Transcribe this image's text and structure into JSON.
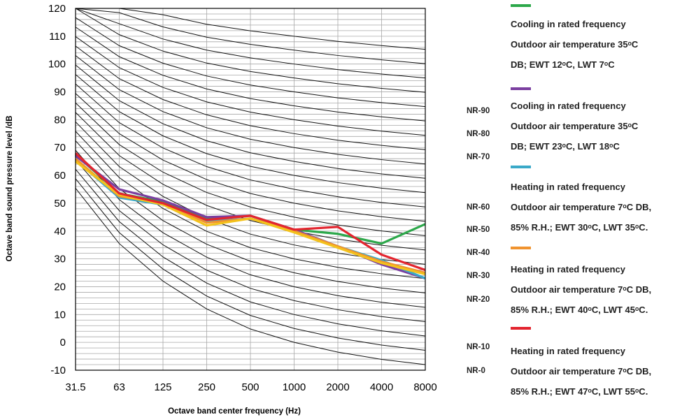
{
  "chart_data": {
    "type": "line",
    "title": "",
    "xlabel": "Octave band center frequency (Hz)",
    "ylabel": "Octave band sound pressure level /dB",
    "x_categories": [
      "31.5",
      "63",
      "125",
      "250",
      "500",
      "1000",
      "2000",
      "4000",
      "8000"
    ],
    "ylim": [
      -10,
      120
    ],
    "y_ticks": [
      -10,
      0,
      10,
      20,
      30,
      40,
      50,
      60,
      70,
      80,
      90,
      100,
      110,
      120
    ],
    "grid": true,
    "legend_position": "right",
    "nr_labels": [
      {
        "label": "NR-90",
        "value": 90
      },
      {
        "label": "NR-80",
        "value": 80
      },
      {
        "label": "NR-70",
        "value": 70
      },
      {
        "label": "NR-60",
        "value": 60
      },
      {
        "label": "NR-50",
        "value": 50
      },
      {
        "label": "NR-40",
        "value": 40
      },
      {
        "label": "NR-30",
        "value": 30
      },
      {
        "label": "NR-20",
        "value": 20
      },
      {
        "label": "NR-10",
        "value": 10
      },
      {
        "label": "NR-0",
        "value": 0
      }
    ],
    "nr_curves": {
      "levels": [
        0,
        5,
        10,
        15,
        20,
        25,
        30,
        35,
        40,
        45,
        50,
        55,
        60,
        65,
        70,
        75,
        80,
        85,
        90,
        95,
        100,
        105,
        110
      ],
      "a": [
        55.4,
        35.5,
        22.0,
        12.0,
        4.8,
        0.0,
        -3.5,
        -6.1,
        -8.0
      ],
      "b": [
        0.681,
        0.79,
        0.87,
        0.93,
        0.974,
        1.0,
        1.015,
        1.025,
        1.03
      ]
    },
    "series": [
      {
        "name": "Cooling in rated frequency Outdoor air temperature 35°C DB; EWT 12°C, LWT 7°C",
        "color": "#2ca84a",
        "values": [
          67.5,
          53.5,
          50.5,
          44.5,
          45.5,
          40.5,
          39.0,
          35.5,
          42.5
        ]
      },
      {
        "name": "Cooling in rated frequency Outdoor air temperature 35°C DB; EWT 23°C, LWT 18°C",
        "color": "#7b3fa0",
        "values": [
          67.0,
          55.0,
          51.0,
          45.0,
          45.5,
          40.5,
          34.5,
          28.0,
          23.0
        ]
      },
      {
        "name": "Heating in rated frequency Outdoor air temperature 7°C DB, 85% R.H.; EWT 30°C, LWT 35°C.",
        "color": "#3aa9c8",
        "values": [
          65.5,
          52.0,
          49.5,
          43.5,
          44.5,
          40.0,
          34.5,
          29.5,
          23.0
        ]
      },
      {
        "name": "Heating in rated frequency Outdoor air temperature 7°C DB, 85% R.H.; EWT 40°C, LWT 45°C.",
        "color": "#f0932f",
        "values": [
          66.0,
          52.5,
          50.0,
          43.0,
          44.5,
          40.0,
          34.5,
          29.0,
          25.0
        ]
      },
      {
        "name": "",
        "color": "#f3c21c",
        "values": [
          65.0,
          53.0,
          49.5,
          42.0,
          44.5,
          39.5,
          34.0,
          28.5,
          24.5
        ]
      },
      {
        "name": "Heating in rated frequency Outdoor air temperature 7°C DB, 85% R.H.; EWT 47°C, LWT 55°C.",
        "color": "#e3252f",
        "values": [
          68.0,
          53.5,
          50.0,
          44.0,
          45.5,
          40.5,
          41.5,
          31.5,
          26.0
        ]
      }
    ]
  },
  "legend": [
    {
      "color": "#2ca84a",
      "line1": "Cooling in rated frequency",
      "line2": "Outdoor air temperature 35ᵒC",
      "line3": "DB; EWT 12ᵒC, LWT 7ᵒC"
    },
    {
      "color": "#7b3fa0",
      "line1": "Cooling in rated frequency",
      "line2": "Outdoor air temperature 35ᵒC",
      "line3": "DB; EWT 23ᵒC, LWT 18ᵒC"
    },
    {
      "color": "#3aa9c8",
      "line1": "Heating in rated frequency",
      "line2": "Outdoor air temperature 7ᵒC DB,",
      "line3": "85% R.H.; EWT 30ᵒC, LWT 35ᵒC."
    },
    {
      "color": "#f0932f",
      "line1": "Heating in rated frequency",
      "line2": "Outdoor air temperature 7ᵒC DB,",
      "line3": "85% R.H.; EWT 40ᵒC, LWT 45ᵒC."
    },
    {
      "color": "#e3252f",
      "line1": "Heating in rated frequency",
      "line2": "Outdoor air temperature 7ᵒC DB,",
      "line3": "85% R.H.; EWT 47ᵒC, LWT 55ᵒC."
    }
  ]
}
